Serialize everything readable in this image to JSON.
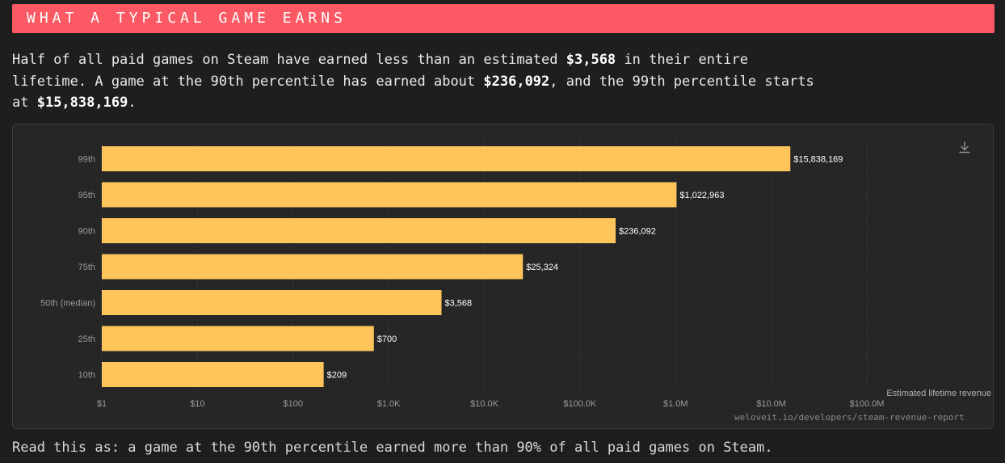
{
  "header": {
    "title": "WHAT A TYPICAL GAME EARNS"
  },
  "intro": {
    "p1": "Half of all paid games on Steam have earned less than an estimated ",
    "v1": "$3,568",
    "p2": " in their entire lifetime. A game at the 90th percentile has earned about ",
    "v2": "$236,092",
    "p3": ", and the 99th percentile starts at ",
    "v3": "$15,838,169",
    "p4": "."
  },
  "source": "weloveit.io/developers/steam-revenue-report",
  "footer": {
    "note": "Read this as: a game at the 90th percentile earned more than 90% of all paid games on Steam."
  },
  "icons": {
    "download": "download-icon"
  },
  "colors": {
    "banner": "#fb5a64",
    "bar": "#ffc55a",
    "background": "#1e1e1e"
  },
  "chart_data": {
    "type": "bar",
    "orientation": "horizontal",
    "scale": "log",
    "categories": [
      "99th",
      "95th",
      "90th",
      "75th",
      "50th (median)",
      "25th",
      "10th"
    ],
    "values": [
      15838169,
      1022963,
      236092,
      25324,
      3568,
      700,
      209
    ],
    "value_labels": [
      "$15,838,169",
      "$1,022,963",
      "$236,092",
      "$25,324",
      "$3,568",
      "$700",
      "$209"
    ],
    "x_ticks": [
      1,
      10,
      100,
      1000,
      10000,
      100000,
      1000000,
      10000000,
      100000000
    ],
    "x_tick_labels": [
      "$1",
      "$10",
      "$100",
      "$1.0K",
      "$10.0K",
      "$100.0K",
      "$1.0M",
      "$10.0M",
      "$100.0M"
    ],
    "xlabel": "Estimated lifetime revenue",
    "xlim": [
      1,
      100000000
    ],
    "grid": true
  }
}
